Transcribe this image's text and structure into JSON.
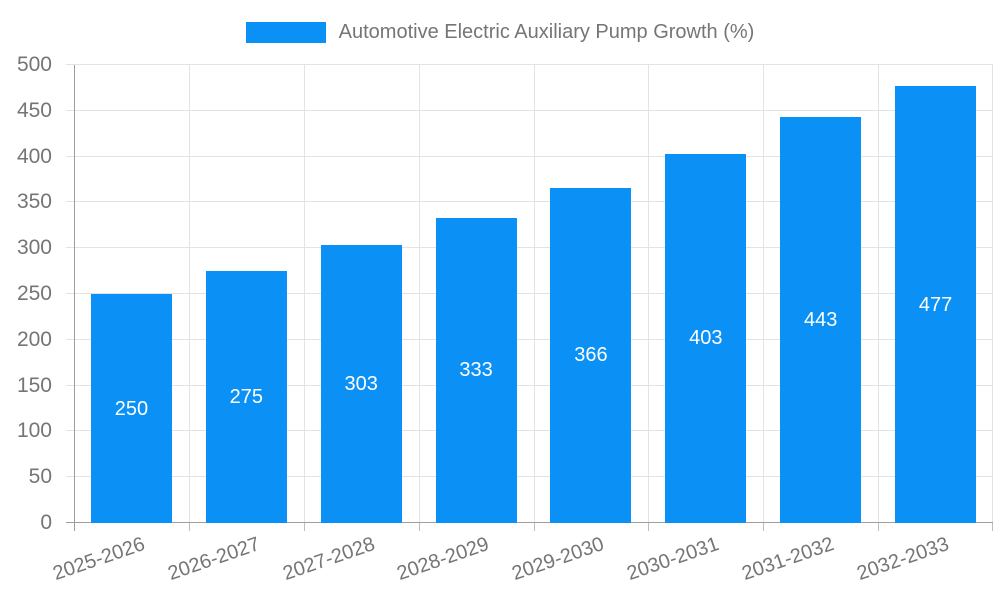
{
  "chart_data": {
    "type": "bar",
    "title": "Automotive Electric Auxiliary Pump Growth (%)",
    "categories": [
      "2025-2026",
      "2026-2027",
      "2027-2028",
      "2028-2029",
      "2029-2030",
      "2030-2031",
      "2031-2032",
      "2032-2033"
    ],
    "values": [
      250,
      275,
      303,
      333,
      366,
      403,
      443,
      477
    ],
    "xlabel": "",
    "ylabel": "",
    "ylim": [
      0,
      500
    ],
    "ytick_step": 50,
    "grid": true,
    "legend_position": "top-center",
    "value_labels": "inside-center"
  },
  "colors": {
    "bar": "#0b91f5",
    "value_label": "#ffffff",
    "axis_text": "#757575",
    "grid_line": "#e3e3e3",
    "axis_line": "#9e9e9e",
    "minor_tick": "#bdbdbd",
    "background": "#ffffff"
  }
}
